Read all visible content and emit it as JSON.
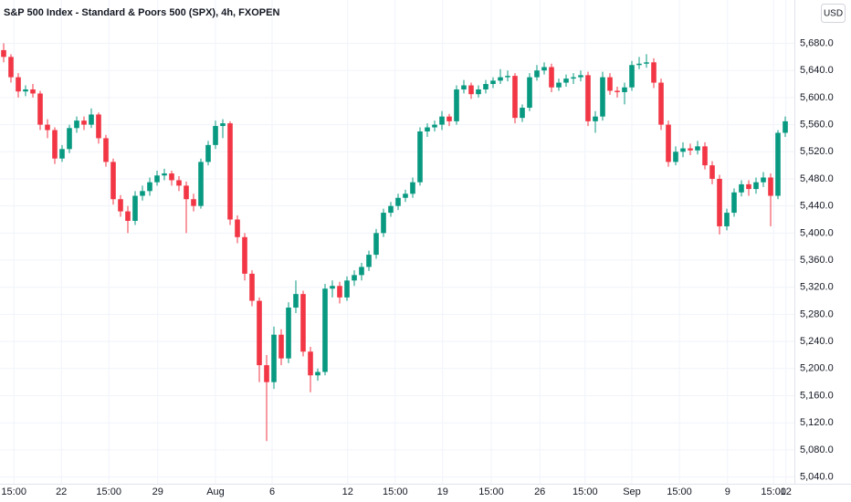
{
  "chart_data": {
    "type": "candlestick",
    "title": "S&P 500 Index - Standard & Poors 500 (SPX), 4h, FXOPEN",
    "currency": "USD",
    "up_color": "#089981",
    "down_color": "#f23645",
    "grid": true,
    "ylim": [
      5030,
      5744
    ],
    "yticks": [
      {
        "value": 5040,
        "label": "5,040.0"
      },
      {
        "value": 5080,
        "label": "5,080.0"
      },
      {
        "value": 5120,
        "label": "5,120.0"
      },
      {
        "value": 5160,
        "label": "5,160.0"
      },
      {
        "value": 5200,
        "label": "5,200.0"
      },
      {
        "value": 5240,
        "label": "5,240.0"
      },
      {
        "value": 5280,
        "label": "5,280.0"
      },
      {
        "value": 5320,
        "label": "5,320.0"
      },
      {
        "value": 5360,
        "label": "5,360.0"
      },
      {
        "value": 5400,
        "label": "5,400.0"
      },
      {
        "value": 5440,
        "label": "5,440.0"
      },
      {
        "value": 5480,
        "label": "5,480.0"
      },
      {
        "value": 5520,
        "label": "5,520.0"
      },
      {
        "value": 5560,
        "label": "5,560.0"
      },
      {
        "value": 5600,
        "label": "5,600.0"
      },
      {
        "value": 5640,
        "label": "5,640.0"
      },
      {
        "value": 5680,
        "label": "5,680.0"
      }
    ],
    "xlim": [
      -0.5,
      108.25
    ],
    "xticks": [
      {
        "value": 1.4,
        "label": "15:00"
      },
      {
        "value": 7.9,
        "label": "22"
      },
      {
        "value": 14.4,
        "label": "15:00"
      },
      {
        "value": 21.1,
        "label": "29"
      },
      {
        "value": 29,
        "label": "Aug"
      },
      {
        "value": 36.75,
        "label": "6"
      },
      {
        "value": 47.1,
        "label": "12"
      },
      {
        "value": 53.6,
        "label": "15:00"
      },
      {
        "value": 60.1,
        "label": "19"
      },
      {
        "value": 66.75,
        "label": "15:00"
      },
      {
        "value": 73.4,
        "label": "26"
      },
      {
        "value": 79.6,
        "label": "15:00"
      },
      {
        "value": 86,
        "label": "Sep"
      },
      {
        "value": 92.5,
        "label": "15:00"
      },
      {
        "value": 99.1,
        "label": "9"
      },
      {
        "value": 105.4,
        "label": "15:00"
      },
      {
        "value": 107.1,
        "label": "12"
      }
    ],
    "open": [
      5670,
      5660,
      5630,
      5609,
      5612,
      5606,
      5560,
      5552,
      5510,
      5524,
      5555,
      5566,
      5560,
      5575,
      5540,
      5505,
      5450,
      5432,
      5418,
      5455,
      5462,
      5475,
      5485,
      5488,
      5478,
      5470,
      5450,
      5440,
      5505,
      5530,
      5558,
      5562,
      5420,
      5394,
      5340,
      5300,
      5205,
      5180,
      5250,
      5215,
      5290,
      5310,
      5225,
      5190,
      5195,
      5318,
      5322,
      5305,
      5330,
      5338,
      5350,
      5368,
      5400,
      5430,
      5440,
      5452,
      5458,
      5475,
      5550,
      5556,
      5560,
      5572,
      5565,
      5612,
      5618,
      5605,
      5612,
      5620,
      5625,
      5630,
      5632,
      5570,
      5585,
      5630,
      5640,
      5645,
      5615,
      5622,
      5628,
      5630,
      5633,
      5565,
      5572,
      5630,
      5610,
      5608,
      5615,
      5648,
      5650,
      5652,
      5622,
      5560,
      5505,
      5520,
      5525,
      5522,
      5528,
      5500,
      5480,
      5410,
      5430,
      5460,
      5472,
      5465,
      5475,
      5482,
      5455,
      5548
    ],
    "high": [
      5680,
      5664,
      5636,
      5618,
      5620,
      5610,
      5568,
      5556,
      5530,
      5560,
      5572,
      5572,
      5584,
      5578,
      5545,
      5510,
      5456,
      5440,
      5462,
      5470,
      5482,
      5492,
      5495,
      5492,
      5484,
      5476,
      5458,
      5510,
      5536,
      5566,
      5568,
      5565,
      5426,
      5400,
      5345,
      5305,
      5220,
      5262,
      5258,
      5298,
      5330,
      5315,
      5232,
      5200,
      5325,
      5330,
      5328,
      5336,
      5345,
      5356,
      5374,
      5406,
      5436,
      5446,
      5458,
      5464,
      5482,
      5556,
      5562,
      5566,
      5580,
      5576,
      5618,
      5626,
      5622,
      5618,
      5626,
      5630,
      5642,
      5640,
      5636,
      5590,
      5636,
      5648,
      5652,
      5650,
      5628,
      5634,
      5636,
      5640,
      5638,
      5580,
      5638,
      5636,
      5616,
      5622,
      5654,
      5660,
      5664,
      5658,
      5628,
      5566,
      5528,
      5534,
      5532,
      5536,
      5534,
      5506,
      5486,
      5436,
      5466,
      5478,
      5478,
      5482,
      5490,
      5488,
      5552,
      5572
    ],
    "low": [
      5652,
      5622,
      5600,
      5602,
      5600,
      5552,
      5540,
      5502,
      5505,
      5518,
      5548,
      5552,
      5555,
      5532,
      5498,
      5442,
      5424,
      5400,
      5412,
      5448,
      5455,
      5470,
      5478,
      5470,
      5462,
      5400,
      5432,
      5436,
      5500,
      5524,
      5540,
      5412,
      5385,
      5330,
      5292,
      5180,
      5093,
      5170,
      5205,
      5208,
      5282,
      5218,
      5165,
      5182,
      5190,
      5305,
      5296,
      5300,
      5322,
      5330,
      5344,
      5362,
      5394,
      5424,
      5434,
      5446,
      5452,
      5470,
      5542,
      5550,
      5552,
      5558,
      5560,
      5606,
      5598,
      5600,
      5606,
      5614,
      5620,
      5624,
      5562,
      5564,
      5580,
      5625,
      5634,
      5608,
      5610,
      5616,
      5620,
      5624,
      5558,
      5548,
      5566,
      5604,
      5600,
      5590,
      5610,
      5642,
      5644,
      5614,
      5552,
      5498,
      5500,
      5512,
      5515,
      5516,
      5494,
      5472,
      5398,
      5404,
      5424,
      5454,
      5455,
      5458,
      5468,
      5410,
      5450,
      5542
    ],
    "close": [
      5660,
      5630,
      5609,
      5612,
      5606,
      5560,
      5552,
      5510,
      5524,
      5555,
      5566,
      5560,
      5575,
      5540,
      5505,
      5450,
      5432,
      5418,
      5455,
      5462,
      5475,
      5485,
      5488,
      5478,
      5470,
      5450,
      5440,
      5505,
      5530,
      5558,
      5562,
      5420,
      5394,
      5340,
      5300,
      5205,
      5180,
      5250,
      5215,
      5290,
      5310,
      5225,
      5190,
      5195,
      5318,
      5322,
      5305,
      5330,
      5338,
      5350,
      5368,
      5400,
      5430,
      5440,
      5452,
      5458,
      5475,
      5550,
      5556,
      5560,
      5572,
      5565,
      5612,
      5618,
      5605,
      5612,
      5620,
      5625,
      5630,
      5632,
      5570,
      5585,
      5630,
      5640,
      5645,
      5615,
      5622,
      5628,
      5630,
      5633,
      5565,
      5572,
      5630,
      5610,
      5608,
      5615,
      5648,
      5650,
      5652,
      5622,
      5560,
      5505,
      5520,
      5525,
      5522,
      5528,
      5500,
      5480,
      5410,
      5430,
      5460,
      5472,
      5465,
      5475,
      5482,
      5455,
      5548,
      5565
    ]
  }
}
